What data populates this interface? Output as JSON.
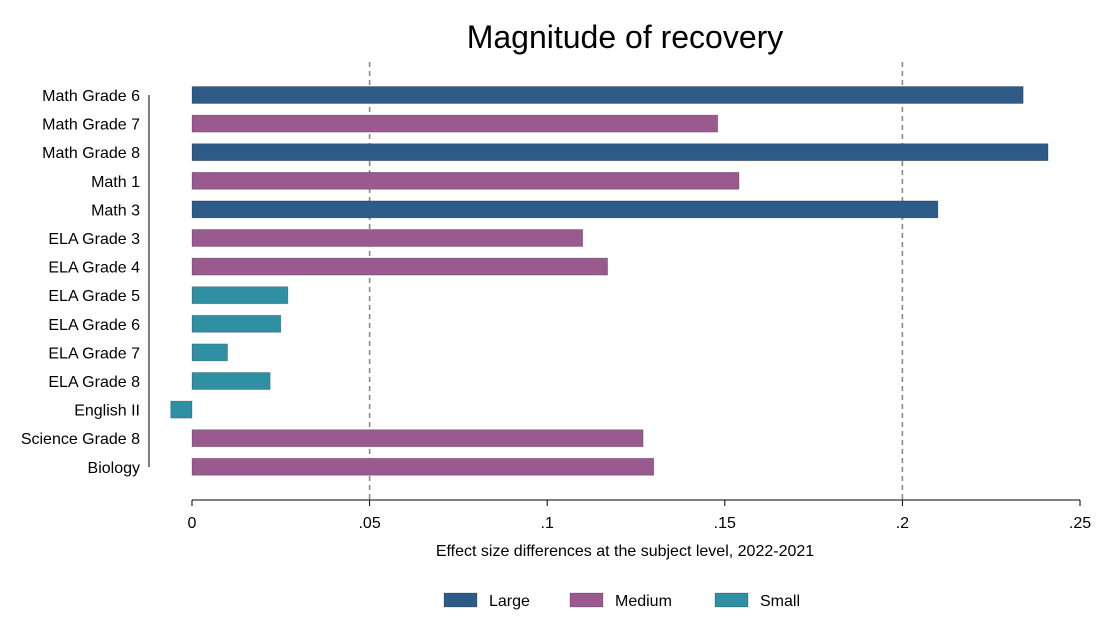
{
  "chart_data": {
    "type": "bar",
    "orientation": "horizontal",
    "title": "Magnitude of recovery",
    "xlabel": "Effect size differences at the subject level, 2022-2021",
    "ylabel": "",
    "xlim": [
      0,
      0.25
    ],
    "xticks": [
      0,
      0.05,
      0.1,
      0.15,
      0.2,
      0.25
    ],
    "xtick_labels": [
      "0",
      ".05",
      ".1",
      ".15",
      ".2",
      ".25"
    ],
    "reference_lines": [
      0.05,
      0.2
    ],
    "grid": false,
    "legend_position": "bottom",
    "legend": [
      {
        "name": "Large",
        "color": "#2e5a87"
      },
      {
        "name": "Medium",
        "color": "#9b5a8f"
      },
      {
        "name": "Small",
        "color": "#2f8fa3"
      }
    ],
    "categories": [
      "Math Grade 6",
      "Math Grade 7",
      "Math Grade 8",
      "Math 1",
      "Math 3",
      "ELA Grade 3",
      "ELA Grade 4",
      "ELA Grade 5",
      "ELA Grade 6",
      "ELA Grade 7",
      "ELA Grade 8",
      "English II",
      "Science Grade 8",
      "Biology"
    ],
    "values": [
      0.234,
      0.148,
      0.241,
      0.154,
      0.21,
      0.11,
      0.117,
      0.027,
      0.025,
      0.01,
      0.022,
      -0.006,
      0.127,
      0.13
    ],
    "groups": [
      "Large",
      "Medium",
      "Large",
      "Medium",
      "Large",
      "Medium",
      "Medium",
      "Small",
      "Small",
      "Small",
      "Small",
      "Small",
      "Medium",
      "Medium"
    ]
  }
}
